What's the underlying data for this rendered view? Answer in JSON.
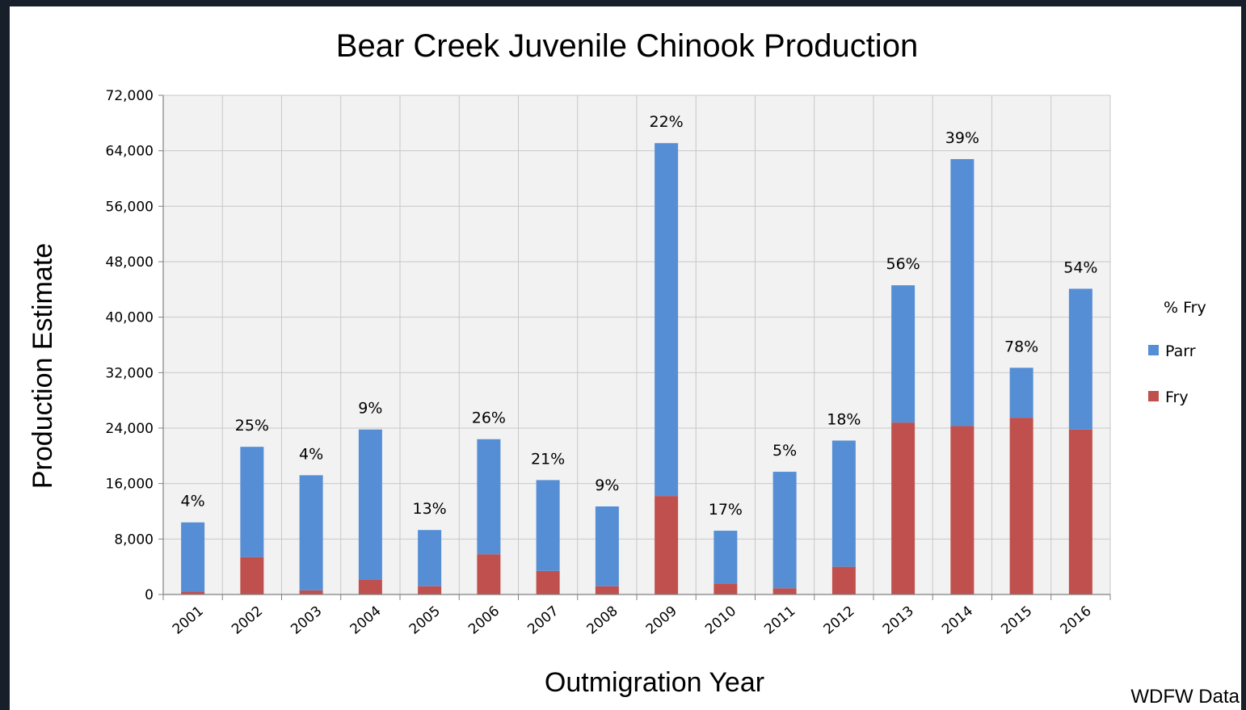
{
  "colors": {
    "background": "#17202a",
    "plot_area": "#f2f2f2",
    "parr": "#558ed5",
    "fry": "#c0504d"
  },
  "source_note": "WDFW Data",
  "chart_data": {
    "type": "bar",
    "stacked": true,
    "title": "Bear Creek Juvenile Chinook Production",
    "xlabel": "Outmigration Year",
    "ylabel": "Production Estimate",
    "ylim": [
      0,
      72000
    ],
    "yticks": [
      "0",
      "8,000",
      "16,000",
      "24,000",
      "32,000",
      "40,000",
      "48,000",
      "56,000",
      "64,000",
      "72,000"
    ],
    "grid": true,
    "legend_position": "right",
    "legend_title": "% Fry",
    "categories": [
      "2001",
      "2002",
      "2003",
      "2004",
      "2005",
      "2006",
      "2007",
      "2008",
      "2009",
      "2010",
      "2011",
      "2012",
      "2013",
      "2014",
      "2015",
      "2016"
    ],
    "series": [
      {
        "name": "Fry",
        "values": [
          400,
          5400,
          600,
          2100,
          1200,
          5800,
          3400,
          1200,
          14200,
          1600,
          900,
          4000,
          24800,
          24300,
          25500,
          23800
        ]
      },
      {
        "name": "Parr",
        "values": [
          10000,
          15900,
          16600,
          21700,
          8100,
          16600,
          13100,
          11500,
          50900,
          7600,
          16800,
          18200,
          19800,
          38500,
          7200,
          20300
        ]
      }
    ],
    "bar_labels": [
      "4%",
      "25%",
      "4%",
      "9%",
      "13%",
      "26%",
      "21%",
      "9%",
      "22%",
      "17%",
      "5%",
      "18%",
      "56%",
      "39%",
      "78%",
      "54%"
    ]
  }
}
